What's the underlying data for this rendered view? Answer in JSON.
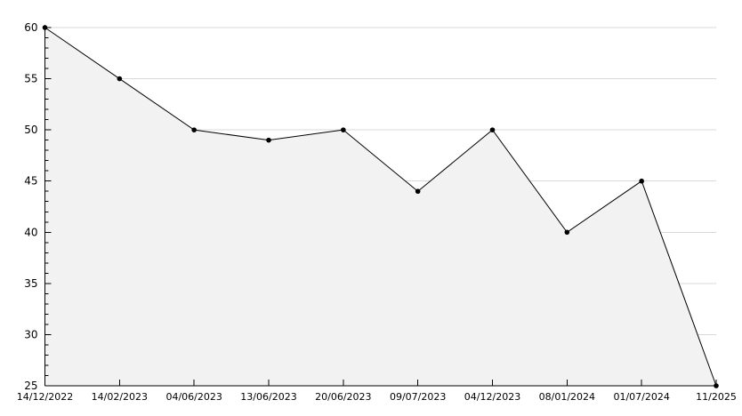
{
  "chart_data": {
    "type": "area",
    "title": "",
    "xlabel": "",
    "ylabel": "",
    "x": [
      "14/12/2022",
      "14/02/2023",
      "04/06/2023",
      "13/06/2023",
      "20/06/2023",
      "09/07/2023",
      "04/12/2023",
      "08/01/2024",
      "01/07/2024",
      "11/2025"
    ],
    "values": [
      60,
      55,
      50,
      49,
      50,
      44,
      50,
      40,
      45,
      25
    ],
    "ylim": [
      25,
      60
    ],
    "y_major_ticks": [
      25,
      30,
      35,
      40,
      45,
      50,
      55,
      60
    ],
    "y_minor_step": 1,
    "grid": "horizontal gridlines at major y ticks, hidden under area fill",
    "legend": "none",
    "marker": "small black dot at each data point",
    "colors": {
      "line": "#000000",
      "marker": "#000000",
      "fill": "#f2f2f2",
      "grid": "#d9d9d9",
      "axis": "#000000",
      "label": "#000000",
      "background": "#ffffff"
    }
  }
}
